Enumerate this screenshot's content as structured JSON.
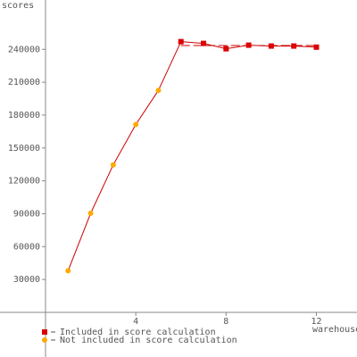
{
  "chart_data": {
    "type": "line",
    "y_label": "scores",
    "x_label": "warehouses",
    "x": [
      1,
      2,
      3,
      4,
      5,
      6,
      7,
      8,
      9,
      10,
      11,
      12
    ],
    "series": [
      {
        "name": "Included in score calculation",
        "color": "#dd0000",
        "marker": "square",
        "values": [
          null,
          null,
          null,
          null,
          null,
          247000,
          245400,
          240500,
          243800,
          243000,
          243000,
          242000
        ]
      },
      {
        "name": "Not included in score calculation",
        "color": "#ffaa00",
        "marker": "circle",
        "values": [
          38000,
          90400,
          134600,
          171400,
          202500,
          null,
          null,
          null,
          null,
          null,
          null,
          null
        ]
      }
    ],
    "line_color": "#cc0000",
    "reference_line": {
      "value": 243500,
      "x": [
        6,
        12
      ]
    },
    "xlim": [
      0,
      13.8
    ],
    "xticks": [
      4,
      8,
      12
    ],
    "ylim": [
      0,
      285000
    ],
    "yticks": [
      30000,
      60000,
      90000,
      120000,
      150000,
      180000,
      210000,
      240000
    ]
  }
}
